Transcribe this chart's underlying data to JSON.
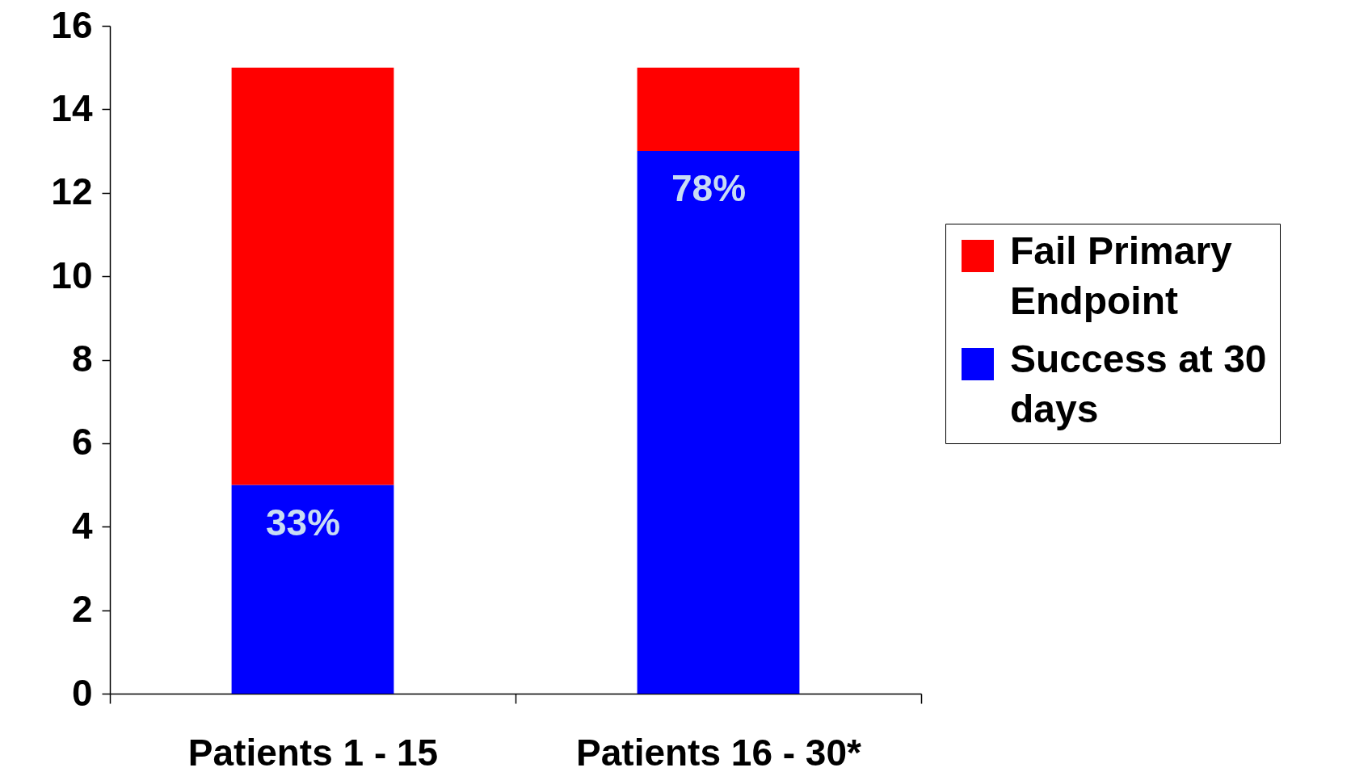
{
  "chart_data": {
    "type": "bar",
    "stacked": true,
    "categories": [
      "Patients  1 - 15",
      "Patients 16 - 30*"
    ],
    "series": [
      {
        "name": "Success at 30 days",
        "color": "#0000ff",
        "values": [
          5,
          13
        ]
      },
      {
        "name": "Fail Primary Endpoint",
        "color": "#ff0000",
        "values": [
          10,
          2
        ]
      }
    ],
    "ylim": [
      0,
      16
    ],
    "yticks": [
      0,
      2,
      4,
      6,
      8,
      10,
      12,
      14,
      16
    ],
    "grid": false,
    "legend": "right",
    "annotations": [
      "33%",
      "78%"
    ]
  }
}
